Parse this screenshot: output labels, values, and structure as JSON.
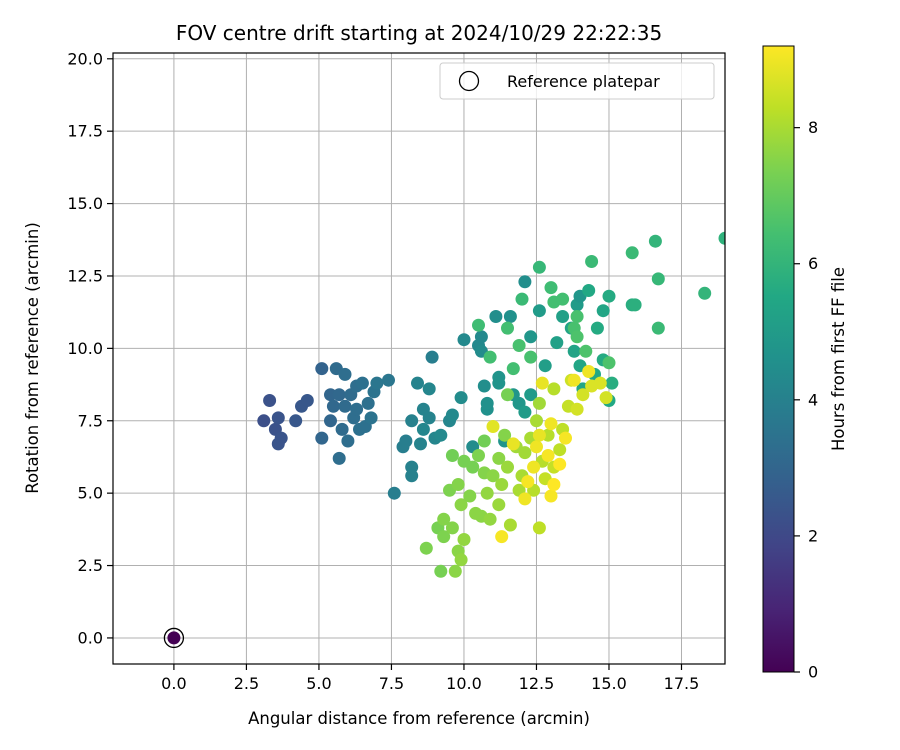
{
  "chart_data": {
    "type": "scatter",
    "title": "FOV centre drift starting at 2024/10/29 22:22:35",
    "xlabel": "Angular distance from reference (arcmin)",
    "ylabel": "Rotation from reference (arcmin)",
    "xlim": [
      -2.1,
      19.0
    ],
    "ylim": [
      -0.9,
      20.2
    ],
    "xticks": [
      "0.0",
      "2.5",
      "5.0",
      "7.5",
      "10.0",
      "12.5",
      "15.0",
      "17.5"
    ],
    "yticks": [
      "0.0",
      "2.5",
      "5.0",
      "7.5",
      "10.0",
      "12.5",
      "15.0",
      "17.5",
      "20.0"
    ],
    "grid": true,
    "legend": {
      "position": "top-right",
      "entries": [
        "Reference platepar"
      ]
    },
    "colorbar": {
      "label": "Hours from first FF file",
      "colormap": "viridis",
      "min": 0,
      "max": 9.2,
      "ticks": [
        "0",
        "2",
        "4",
        "6",
        "8"
      ]
    },
    "reference_point": {
      "x": 0.0,
      "y": 0.0
    },
    "series": [
      {
        "points_xy_hours": [
          [
            0.0,
            0.0,
            0.0
          ],
          [
            3.1,
            7.5,
            2.2
          ],
          [
            3.3,
            8.2,
            2.3
          ],
          [
            3.5,
            7.2,
            2.3
          ],
          [
            3.6,
            7.6,
            2.4
          ],
          [
            3.6,
            6.7,
            2.4
          ],
          [
            3.7,
            6.9,
            2.4
          ],
          [
            4.2,
            7.5,
            2.5
          ],
          [
            4.4,
            8.0,
            2.5
          ],
          [
            4.6,
            8.2,
            2.5
          ],
          [
            5.1,
            6.9,
            3.0
          ],
          [
            5.1,
            9.3,
            2.9
          ],
          [
            5.4,
            7.5,
            3.0
          ],
          [
            5.4,
            8.4,
            3.0
          ],
          [
            5.5,
            8.0,
            3.1
          ],
          [
            5.6,
            9.3,
            3.2
          ],
          [
            5.7,
            6.2,
            3.3
          ],
          [
            5.7,
            8.4,
            3.1
          ],
          [
            5.8,
            7.2,
            3.2
          ],
          [
            5.9,
            8.0,
            3.2
          ],
          [
            5.9,
            9.1,
            3.3
          ],
          [
            6.0,
            6.8,
            3.3
          ],
          [
            6.1,
            8.4,
            3.2
          ],
          [
            6.2,
            7.6,
            3.3
          ],
          [
            6.3,
            8.7,
            3.3
          ],
          [
            6.3,
            7.9,
            3.3
          ],
          [
            6.4,
            7.2,
            3.4
          ],
          [
            6.5,
            8.8,
            3.4
          ],
          [
            6.6,
            7.3,
            3.4
          ],
          [
            6.7,
            8.1,
            3.4
          ],
          [
            6.8,
            7.6,
            3.5
          ],
          [
            6.9,
            8.5,
            3.5
          ],
          [
            7.0,
            8.8,
            3.6
          ],
          [
            7.4,
            8.9,
            3.6
          ],
          [
            7.6,
            5.0,
            3.9
          ],
          [
            7.9,
            6.6,
            3.9
          ],
          [
            8.0,
            6.8,
            3.9
          ],
          [
            8.2,
            7.5,
            4.0
          ],
          [
            8.2,
            5.9,
            4.0
          ],
          [
            8.2,
            5.6,
            4.0
          ],
          [
            8.4,
            8.8,
            4.1
          ],
          [
            8.5,
            6.7,
            4.1
          ],
          [
            8.6,
            7.9,
            4.1
          ],
          [
            8.6,
            7.2,
            4.2
          ],
          [
            8.8,
            7.6,
            4.1
          ],
          [
            8.8,
            8.6,
            4.2
          ],
          [
            8.9,
            9.7,
            3.9
          ],
          [
            9.0,
            6.9,
            4.2
          ],
          [
            9.2,
            7.0,
            4.3
          ],
          [
            9.5,
            7.5,
            4.2
          ],
          [
            9.6,
            7.7,
            4.3
          ],
          [
            9.9,
            8.3,
            4.4
          ],
          [
            10.0,
            10.3,
            4.3
          ],
          [
            10.3,
            6.6,
            4.4
          ],
          [
            10.5,
            10.1,
            4.3
          ],
          [
            10.6,
            9.9,
            4.4
          ],
          [
            10.6,
            10.4,
            4.3
          ],
          [
            10.7,
            8.7,
            4.5
          ],
          [
            10.8,
            7.9,
            4.6
          ],
          [
            10.8,
            8.1,
            4.6
          ],
          [
            11.1,
            11.1,
            4.5
          ],
          [
            11.2,
            9.0,
            4.7
          ],
          [
            11.2,
            8.8,
            4.7
          ],
          [
            11.4,
            6.8,
            4.7
          ],
          [
            11.6,
            11.1,
            4.6
          ],
          [
            11.7,
            8.4,
            4.8
          ],
          [
            11.9,
            8.1,
            4.8
          ],
          [
            12.1,
            7.8,
            5.0
          ],
          [
            12.1,
            12.3,
            4.5
          ],
          [
            12.3,
            8.4,
            5.0
          ],
          [
            12.3,
            10.4,
            4.8
          ],
          [
            12.6,
            11.3,
            5.0
          ],
          [
            12.8,
            9.4,
            5.1
          ],
          [
            13.2,
            10.2,
            5.2
          ],
          [
            13.4,
            11.1,
            5.2
          ],
          [
            13.7,
            10.7,
            5.3
          ],
          [
            13.8,
            9.9,
            5.3
          ],
          [
            13.9,
            11.5,
            5.0
          ],
          [
            14.0,
            11.8,
            4.8
          ],
          [
            14.0,
            9.4,
            5.4
          ],
          [
            14.1,
            8.6,
            5.4
          ],
          [
            14.3,
            12.0,
            5.5
          ],
          [
            14.5,
            9.1,
            5.5
          ],
          [
            14.6,
            10.7,
            5.6
          ],
          [
            14.8,
            9.6,
            5.6
          ],
          [
            14.8,
            11.3,
            5.4
          ],
          [
            15.0,
            8.2,
            5.5
          ],
          [
            15.0,
            11.8,
            5.6
          ],
          [
            15.1,
            8.8,
            5.7
          ],
          [
            15.8,
            11.5,
            5.7
          ],
          [
            15.9,
            11.5,
            5.8
          ],
          [
            10.5,
            10.8,
            6.3
          ],
          [
            10.9,
            9.7,
            6.4
          ],
          [
            11.5,
            10.7,
            6.4
          ],
          [
            11.7,
            9.3,
            6.4
          ],
          [
            11.9,
            10.1,
            6.5
          ],
          [
            12.0,
            11.7,
            6.2
          ],
          [
            12.3,
            9.7,
            6.5
          ],
          [
            12.6,
            12.8,
            6.1
          ],
          [
            13.0,
            12.1,
            6.3
          ],
          [
            13.1,
            11.6,
            6.4
          ],
          [
            13.4,
            11.7,
            6.4
          ],
          [
            13.8,
            10.7,
            6.5
          ],
          [
            13.9,
            11.1,
            6.5
          ],
          [
            13.9,
            10.4,
            6.6
          ],
          [
            14.2,
            9.9,
            6.6
          ],
          [
            14.4,
            13.0,
            6.2
          ],
          [
            15.0,
            9.5,
            6.6
          ],
          [
            15.8,
            13.3,
            6.2
          ],
          [
            16.6,
            13.7,
            6.0
          ],
          [
            16.7,
            12.4,
            6.1
          ],
          [
            16.7,
            10.7,
            6.2
          ],
          [
            18.3,
            11.9,
            6.0
          ],
          [
            19.0,
            13.8,
            5.9
          ],
          [
            8.7,
            3.1,
            7.4
          ],
          [
            9.1,
            3.8,
            7.3
          ],
          [
            9.2,
            2.3,
            7.3
          ],
          [
            9.3,
            3.5,
            7.4
          ],
          [
            9.3,
            4.1,
            7.5
          ],
          [
            9.5,
            5.1,
            7.4
          ],
          [
            9.6,
            3.8,
            7.5
          ],
          [
            9.6,
            6.3,
            7.2
          ],
          [
            9.7,
            2.3,
            7.6
          ],
          [
            9.8,
            3.0,
            7.6
          ],
          [
            9.8,
            5.3,
            7.5
          ],
          [
            9.9,
            4.6,
            7.6
          ],
          [
            9.9,
            2.7,
            7.7
          ],
          [
            10.0,
            3.4,
            7.7
          ],
          [
            10.0,
            6.1,
            7.3
          ],
          [
            10.2,
            4.9,
            7.5
          ],
          [
            10.3,
            5.9,
            7.3
          ],
          [
            10.4,
            4.3,
            7.6
          ],
          [
            10.5,
            6.3,
            7.4
          ],
          [
            10.6,
            4.2,
            7.6
          ],
          [
            10.7,
            5.7,
            7.5
          ],
          [
            10.7,
            6.8,
            7.2
          ],
          [
            10.8,
            5.0,
            7.7
          ],
          [
            10.9,
            4.1,
            7.7
          ],
          [
            11.0,
            5.6,
            7.6
          ],
          [
            11.2,
            6.2,
            7.6
          ],
          [
            11.2,
            4.6,
            7.8
          ],
          [
            11.3,
            5.3,
            7.8
          ],
          [
            11.4,
            7.0,
            7.5
          ],
          [
            11.5,
            5.9,
            7.8
          ],
          [
            11.5,
            8.4,
            7.3
          ],
          [
            11.6,
            3.9,
            8.0
          ],
          [
            11.8,
            6.6,
            7.9
          ],
          [
            11.9,
            5.1,
            8.0
          ],
          [
            12.0,
            5.6,
            8.0
          ],
          [
            12.1,
            6.4,
            7.9
          ],
          [
            12.3,
            6.9,
            8.0
          ],
          [
            12.4,
            5.1,
            8.2
          ],
          [
            12.5,
            7.5,
            8.0
          ],
          [
            12.6,
            3.8,
            8.3
          ],
          [
            12.6,
            8.1,
            7.9
          ],
          [
            12.7,
            6.1,
            8.2
          ],
          [
            12.8,
            5.5,
            8.4
          ],
          [
            12.9,
            7.0,
            8.2
          ],
          [
            13.1,
            5.9,
            8.4
          ],
          [
            13.1,
            8.6,
            8.2
          ],
          [
            13.3,
            6.5,
            8.3
          ],
          [
            13.4,
            7.2,
            8.3
          ],
          [
            13.6,
            8.0,
            8.4
          ],
          [
            13.7,
            8.9,
            8.5
          ],
          [
            13.9,
            7.9,
            8.6
          ],
          [
            14.1,
            8.4,
            8.6
          ],
          [
            14.4,
            8.7,
            8.7
          ],
          [
            14.7,
            8.8,
            8.7
          ],
          [
            14.9,
            8.3,
            8.6
          ],
          [
            11.0,
            7.3,
            8.8
          ],
          [
            11.3,
            3.5,
            9.1
          ],
          [
            11.7,
            6.7,
            8.9
          ],
          [
            12.1,
            4.8,
            9.0
          ],
          [
            12.2,
            5.4,
            9.1
          ],
          [
            12.4,
            5.9,
            9.0
          ],
          [
            12.5,
            6.6,
            9.0
          ],
          [
            12.6,
            7.0,
            8.9
          ],
          [
            12.7,
            8.8,
            8.9
          ],
          [
            12.9,
            6.3,
            9.1
          ],
          [
            13.0,
            4.9,
            9.1
          ],
          [
            13.0,
            7.4,
            9.0
          ],
          [
            13.1,
            5.3,
            9.2
          ],
          [
            13.3,
            6.0,
            9.2
          ],
          [
            13.5,
            6.9,
            9.1
          ],
          [
            13.8,
            8.9,
            9.0
          ],
          [
            14.3,
            9.2,
            9.0
          ]
        ]
      }
    ]
  }
}
